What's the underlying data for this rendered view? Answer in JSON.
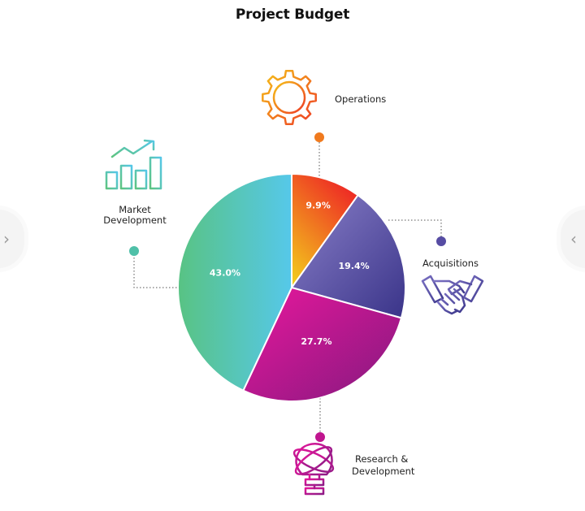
{
  "chart_data": {
    "type": "pie",
    "title": "Project Budget",
    "slices": [
      {
        "label": "Operations",
        "value": 9.9,
        "display": "9.9%",
        "colors": [
          "#f0c420",
          "#ee3b24"
        ],
        "dot": "#f07a1e"
      },
      {
        "label": "Acquisitions",
        "value": 19.4,
        "display": "19.4%",
        "colors": [
          "#7a6fbf",
          "#3f3a8e"
        ],
        "dot": "#5a4fa6"
      },
      {
        "label": "Research & Development",
        "value": 27.7,
        "display": "27.7%",
        "colors": [
          "#e0169a",
          "#8b1a85"
        ],
        "dot": "#c0158f"
      },
      {
        "label": "Market Development",
        "value": 43.0,
        "display": "43.0%",
        "colors": [
          "#5bc28a",
          "#57c6e6"
        ],
        "dot": "#4fc0a8"
      }
    ],
    "category_labels": {
      "operations": [
        "Operations"
      ],
      "acquisitions": [
        "Acquisitions"
      ],
      "research": [
        "Research &",
        "Development"
      ],
      "market": [
        "Market",
        "Development"
      ]
    }
  },
  "icons": {
    "operations": "gear-icon",
    "acquisitions": "handshake-icon",
    "research": "atom-bulb-icon",
    "market": "growth-chart-icon"
  },
  "nav": {
    "prev": "‹",
    "next": "‹"
  }
}
